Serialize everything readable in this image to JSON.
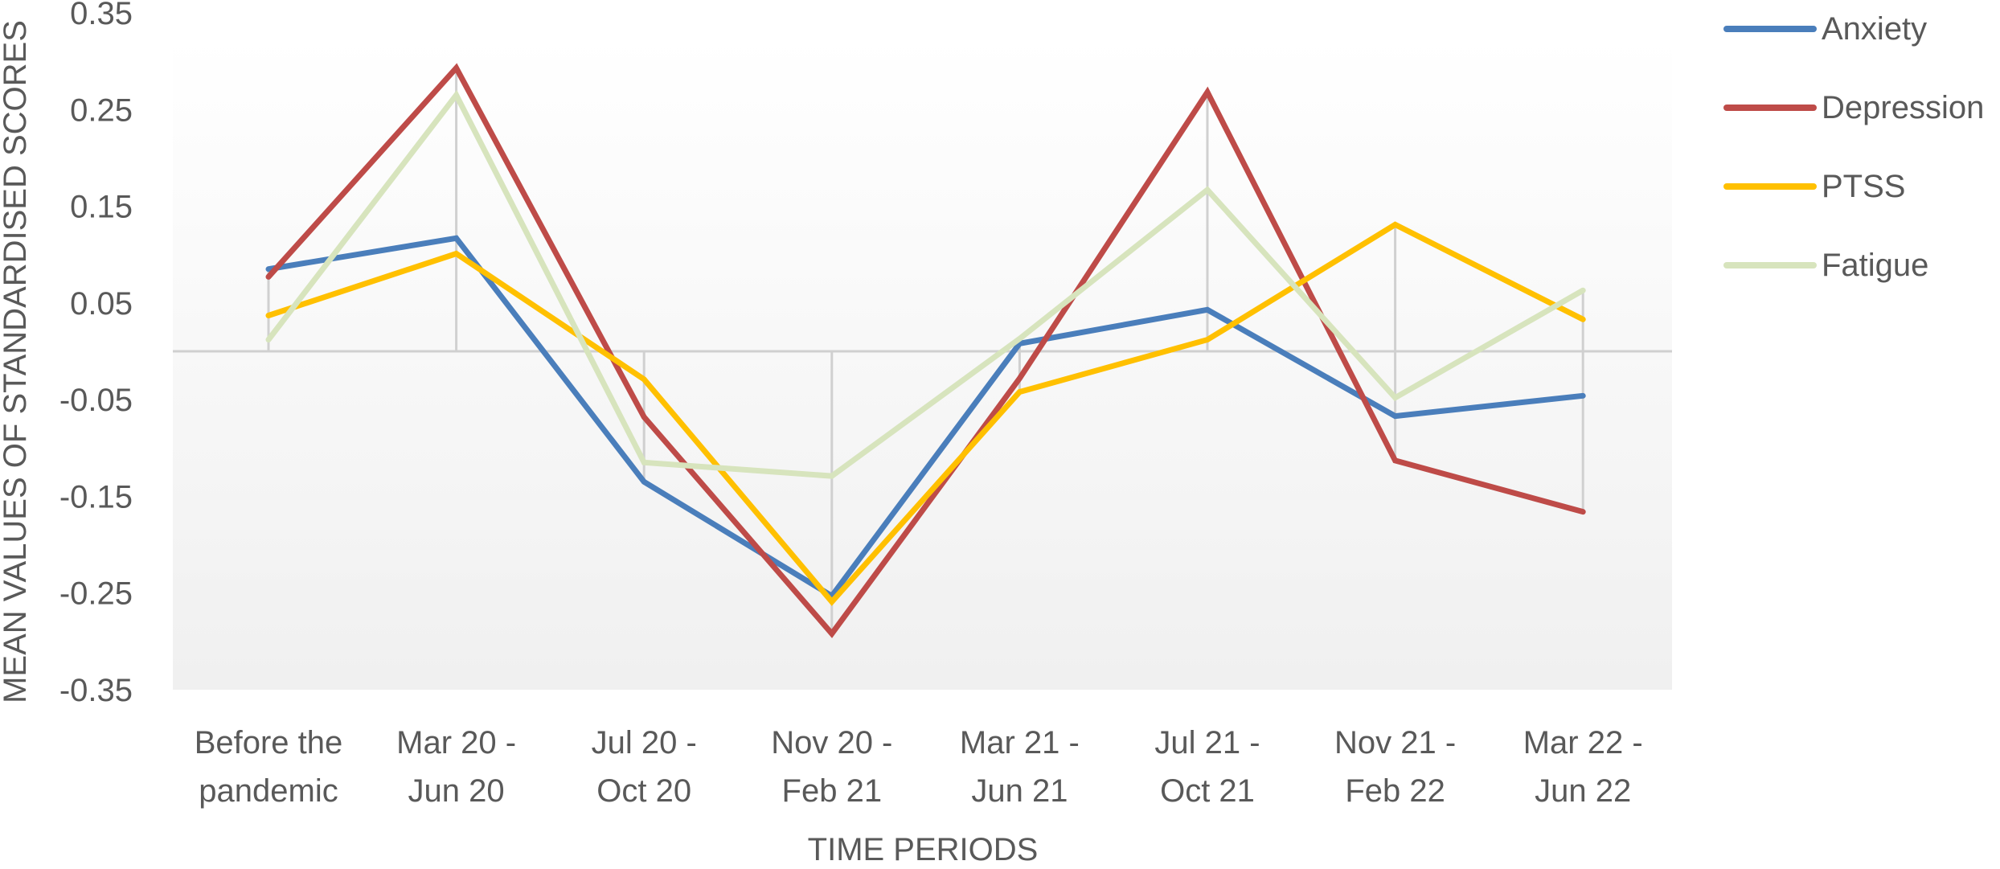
{
  "chart_data": {
    "type": "line",
    "title": "",
    "xlabel": "TIME PERIODS",
    "ylabel": "MEAN VALUES OF STANDARDISED SCORES",
    "ylim": [
      -0.35,
      0.35
    ],
    "yticks": [
      "0.35",
      "0.25",
      "0.15",
      "0.05",
      "-0.05",
      "-0.15",
      "-0.25",
      "-0.35"
    ],
    "ytick_values": [
      0.35,
      0.25,
      0.15,
      0.05,
      -0.05,
      -0.15,
      -0.25,
      -0.35
    ],
    "categories": [
      [
        "Before the",
        "pandemic"
      ],
      [
        "Mar 20  -",
        "Jun 20"
      ],
      [
        "Jul 20  -",
        "Oct 20"
      ],
      [
        "Nov 20  -",
        "Feb 21"
      ],
      [
        "Mar 21  -",
        "Jun 21"
      ],
      [
        "Jul 21  -",
        "Oct 21"
      ],
      [
        "Nov 21  -",
        "Feb 22"
      ],
      [
        "Mar 22  -",
        "Jun 22"
      ]
    ],
    "grid": "vertical drop lines at each category, horizontal reference line at 0",
    "legend": "right",
    "series": [
      {
        "name": "Anxiety",
        "color": "#4a7ebb",
        "values": [
          0.085,
          0.117,
          -0.135,
          -0.253,
          0.008,
          0.043,
          -0.067,
          -0.046
        ]
      },
      {
        "name": "Depression",
        "color": "#be4b48",
        "values": [
          0.077,
          0.293,
          -0.068,
          -0.292,
          -0.028,
          0.268,
          -0.113,
          -0.166
        ]
      },
      {
        "name": "PTSS",
        "color": "#ffc000",
        "values": [
          0.037,
          0.101,
          -0.029,
          -0.259,
          -0.042,
          0.012,
          0.131,
          0.033
        ]
      },
      {
        "name": "Fatigue",
        "color": "#d7e4bd",
        "values": [
          0.012,
          0.265,
          -0.115,
          -0.129,
          0.013,
          0.167,
          -0.048,
          0.063
        ]
      }
    ]
  }
}
